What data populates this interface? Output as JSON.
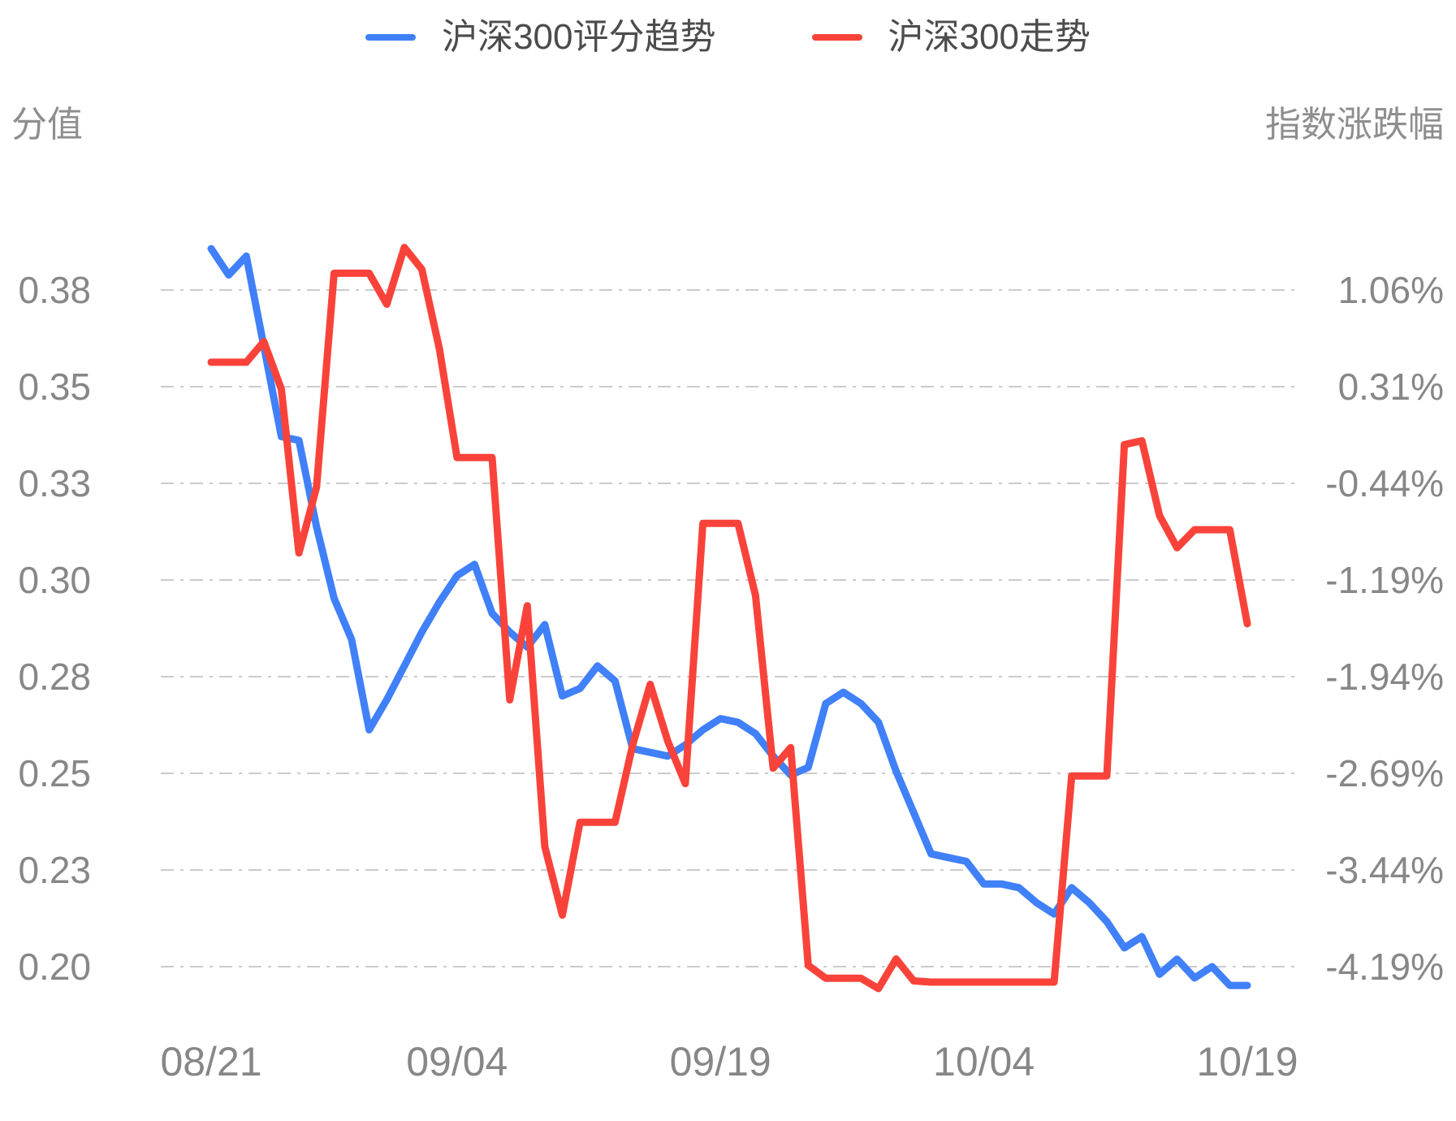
{
  "chart_data": {
    "type": "line",
    "title": "",
    "legend_position": "top-center",
    "grid": "horizontal dash-dot gridlines, no axis lines",
    "background": "#ffffff",
    "gridline_color": "#cbcbcb",
    "tick_label_color": "#878787",
    "x": [
      "08/21",
      "08/22",
      "08/23",
      "08/24",
      "08/25",
      "08/26",
      "08/27",
      "08/28",
      "08/29",
      "08/30",
      "08/31",
      "09/01",
      "09/02",
      "09/03",
      "09/04",
      "09/05",
      "09/06",
      "09/07",
      "09/08",
      "09/09",
      "09/10",
      "09/11",
      "09/12",
      "09/13",
      "09/14",
      "09/15",
      "09/16",
      "09/17",
      "09/18",
      "09/19",
      "09/20",
      "09/21",
      "09/22",
      "09/23",
      "09/24",
      "09/25",
      "09/26",
      "09/27",
      "09/28",
      "09/29",
      "09/30",
      "10/01",
      "10/02",
      "10/03",
      "10/04",
      "10/05",
      "10/06",
      "10/07",
      "10/08",
      "10/09",
      "10/10",
      "10/11",
      "10/12",
      "10/13",
      "10/14",
      "10/15",
      "10/16",
      "10/17",
      "10/18",
      "10/19"
    ],
    "x_ticks": {
      "labels": [
        "08/21",
        "09/04",
        "09/19",
        "10/04",
        "10/19"
      ],
      "indices": [
        0,
        14,
        29,
        44,
        59
      ]
    },
    "left_axis": {
      "name": "分值",
      "max": 0.38,
      "min": 0.2,
      "tick_labels": [
        "0.38",
        "0.35",
        "0.33",
        "0.30",
        "0.28",
        "0.25",
        "0.23",
        "0.20"
      ]
    },
    "right_axis": {
      "name": "指数涨跌幅",
      "max": 1.06,
      "min": -4.19,
      "tick_labels": [
        "1.06%",
        "0.31%",
        "-0.44%",
        "-1.19%",
        "-1.94%",
        "-2.69%",
        "-3.44%",
        "-4.19%"
      ]
    },
    "series": [
      {
        "name": "沪深300评分趋势",
        "key": "score-trend",
        "axis": "left",
        "color": "#4080f8",
        "values": [
          0.391,
          0.384,
          0.389,
          0.365,
          0.341,
          0.34,
          0.317,
          0.298,
          0.287,
          0.263,
          0.271,
          0.28,
          0.289,
          0.297,
          0.304,
          0.307,
          0.294,
          0.289,
          0.285,
          0.291,
          0.272,
          0.274,
          0.28,
          0.276,
          0.258,
          0.257,
          0.256,
          0.259,
          0.263,
          0.266,
          0.265,
          0.262,
          0.256,
          0.251,
          0.253,
          0.27,
          0.273,
          0.27,
          0.265,
          0.252,
          0.241,
          0.23,
          0.229,
          0.228,
          0.222,
          0.222,
          0.221,
          0.217,
          0.214,
          0.221,
          0.217,
          0.212,
          0.205,
          0.208,
          0.198,
          0.202,
          0.197,
          0.2,
          0.195,
          0.195
        ]
      },
      {
        "name": "沪深300走势",
        "key": "index-trend",
        "axis": "right",
        "color": "#f9433a",
        "values": [
          0.5,
          0.5,
          0.5,
          0.66,
          0.29,
          -0.98,
          -0.47,
          1.19,
          1.19,
          1.19,
          0.95,
          1.39,
          1.22,
          0.6,
          -0.24,
          -0.24,
          -0.24,
          -2.12,
          -1.39,
          -3.26,
          -3.79,
          -3.07,
          -3.07,
          -3.07,
          -2.47,
          -2.0,
          -2.44,
          -2.77,
          -0.75,
          -0.75,
          -0.75,
          -1.31,
          -2.65,
          -2.49,
          -4.18,
          -4.28,
          -4.28,
          -4.28,
          -4.36,
          -4.13,
          -4.3,
          -4.31,
          -4.31,
          -4.31,
          -4.31,
          -4.31,
          -4.31,
          -4.31,
          -4.31,
          -2.71,
          -2.71,
          -2.71,
          -0.14,
          -0.11,
          -0.69,
          -0.94,
          -0.8,
          -0.8,
          -0.8,
          -1.53
        ]
      }
    ]
  }
}
